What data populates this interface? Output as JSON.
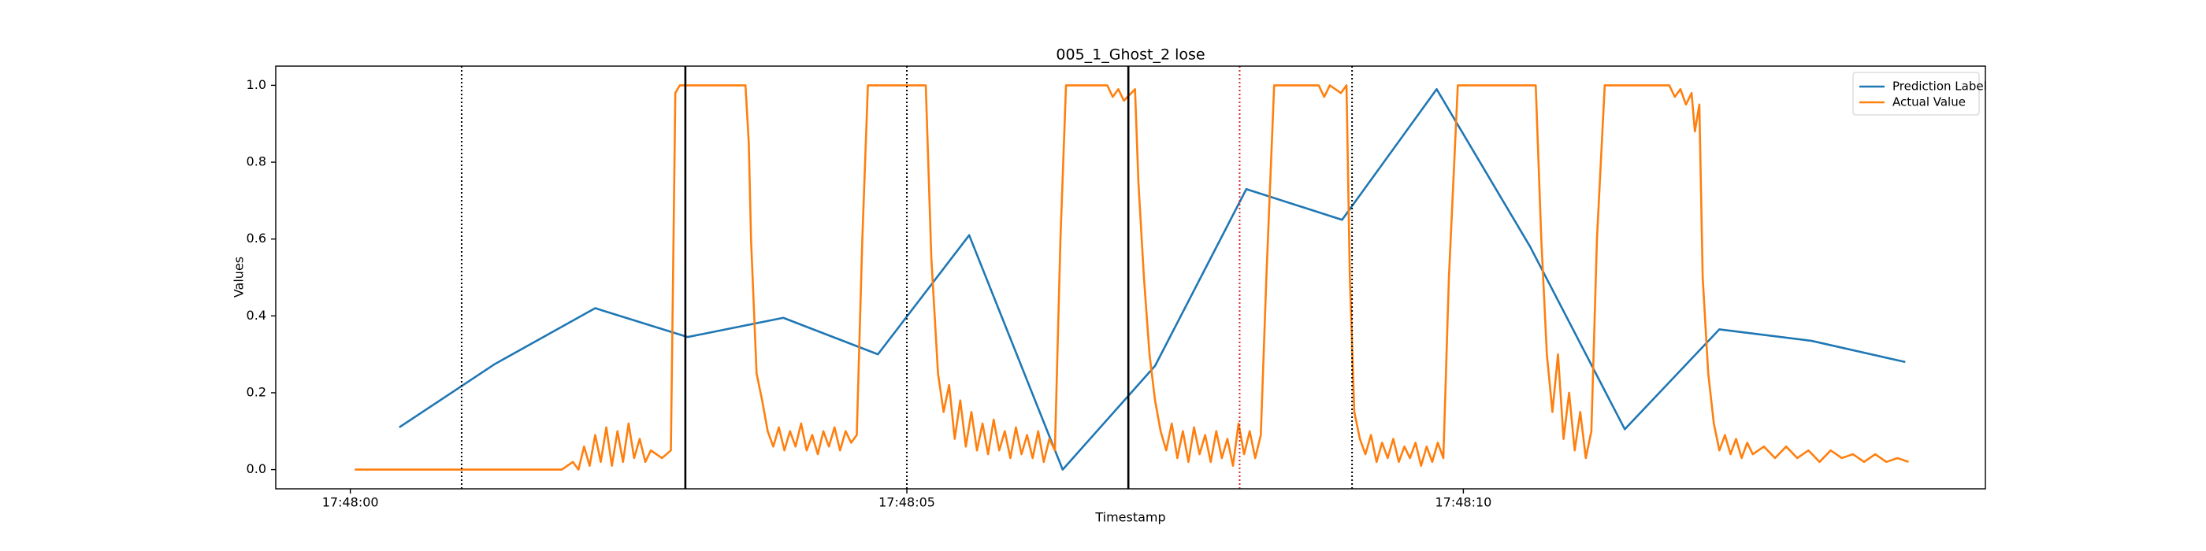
{
  "chart_data": {
    "type": "line",
    "title": "005_1_Ghost_2 lose",
    "x_label": "Timestamp",
    "y_label": "Values",
    "xlim": [
      -0.67,
      14.69
    ],
    "ylim": [
      -0.05,
      1.05
    ],
    "xticks": [
      {
        "value": 0,
        "label": "17:48:00"
      },
      {
        "value": 5,
        "label": "17:48:05"
      },
      {
        "value": 10,
        "label": "17:48:10"
      }
    ],
    "yticks": [
      {
        "value": 0,
        "label": "0.0"
      },
      0.2,
      0.4,
      0.6,
      0.8,
      {
        "value": 1,
        "label": "1.0"
      }
    ],
    "legend": "upper right",
    "vlines": [
      {
        "x": 1.0,
        "color": "#000000",
        "style": "dotted"
      },
      {
        "x": 3.01,
        "color": "#000000",
        "style": "solid"
      },
      {
        "x": 5.0,
        "color": "#000000",
        "style": "dotted"
      },
      {
        "x": 6.99,
        "color": "#000000",
        "style": "solid"
      },
      {
        "x": 7.99,
        "color": "#d62728",
        "style": "dotted"
      },
      {
        "x": 9.0,
        "color": "#000000",
        "style": "dotted"
      }
    ],
    "series": [
      {
        "name": "Prediction Label",
        "color": "#1f77b4",
        "x": [
          0.44,
          1.3,
          2.2,
          3.03,
          3.89,
          4.74,
          5.56,
          6.4,
          7.23,
          8.05,
          8.91,
          9.76,
          10.6,
          11.45,
          12.3,
          13.13,
          13.97
        ],
        "values": [
          0.11,
          0.275,
          0.42,
          0.345,
          0.395,
          0.3,
          0.61,
          0.0,
          0.27,
          0.73,
          0.65,
          0.99,
          0.58,
          0.105,
          0.365,
          0.335,
          0.28
        ]
      },
      {
        "name": "Actual Value",
        "color": "#ff7f0e",
        "x": [
          0.04,
          1.9,
          2.0,
          2.05,
          2.1,
          2.15,
          2.2,
          2.25,
          2.3,
          2.35,
          2.4,
          2.45,
          2.5,
          2.55,
          2.6,
          2.65,
          2.7,
          2.8,
          2.88,
          2.92,
          2.96,
          3.55,
          3.58,
          3.6,
          3.65,
          3.7,
          3.75,
          3.8,
          3.85,
          3.9,
          3.95,
          4.0,
          4.05,
          4.1,
          4.15,
          4.2,
          4.25,
          4.3,
          4.35,
          4.4,
          4.45,
          4.5,
          4.55,
          4.6,
          4.65,
          5.17,
          5.22,
          5.28,
          5.33,
          5.38,
          5.43,
          5.48,
          5.53,
          5.58,
          5.63,
          5.68,
          5.73,
          5.78,
          5.83,
          5.88,
          5.93,
          5.98,
          6.03,
          6.08,
          6.13,
          6.18,
          6.23,
          6.28,
          6.33,
          6.38,
          6.43,
          6.8,
          6.85,
          6.9,
          6.95,
          7.05,
          7.08,
          7.13,
          7.18,
          7.23,
          7.28,
          7.33,
          7.38,
          7.43,
          7.48,
          7.53,
          7.58,
          7.63,
          7.68,
          7.73,
          7.78,
          7.83,
          7.88,
          7.93,
          7.98,
          8.03,
          8.08,
          8.13,
          8.18,
          8.23,
          8.3,
          8.7,
          8.75,
          8.8,
          8.9,
          8.95,
          8.98,
          9.02,
          9.07,
          9.12,
          9.17,
          9.22,
          9.27,
          9.32,
          9.37,
          9.42,
          9.47,
          9.52,
          9.57,
          9.62,
          9.67,
          9.72,
          9.77,
          9.82,
          9.87,
          9.95,
          10.65,
          10.7,
          10.75,
          10.8,
          10.85,
          10.9,
          10.95,
          11.0,
          11.05,
          11.1,
          11.15,
          11.2,
          11.27,
          11.85,
          11.9,
          11.95,
          12.0,
          12.05,
          12.08,
          12.12,
          12.15,
          12.2,
          12.25,
          12.3,
          12.35,
          12.4,
          12.45,
          12.5,
          12.55,
          12.6,
          12.7,
          12.8,
          12.9,
          13.0,
          13.1,
          13.2,
          13.3,
          13.4,
          13.5,
          13.6,
          13.7,
          13.8,
          13.9,
          14.0
        ],
        "values": [
          0,
          0,
          0.02,
          0,
          0.06,
          0.01,
          0.09,
          0.02,
          0.11,
          0.01,
          0.1,
          0.02,
          0.12,
          0.03,
          0.08,
          0.02,
          0.05,
          0.03,
          0.05,
          0.98,
          1,
          1,
          0.85,
          0.6,
          0.25,
          0.18,
          0.1,
          0.06,
          0.11,
          0.05,
          0.1,
          0.06,
          0.12,
          0.05,
          0.09,
          0.04,
          0.1,
          0.06,
          0.11,
          0.05,
          0.1,
          0.07,
          0.09,
          0.6,
          1,
          1,
          0.55,
          0.25,
          0.15,
          0.22,
          0.08,
          0.18,
          0.06,
          0.15,
          0.05,
          0.12,
          0.04,
          0.13,
          0.05,
          0.1,
          0.03,
          0.11,
          0.04,
          0.09,
          0.03,
          0.1,
          0.02,
          0.08,
          0.05,
          0.6,
          1,
          1,
          0.97,
          0.99,
          0.96,
          0.99,
          0.75,
          0.5,
          0.3,
          0.18,
          0.1,
          0.05,
          0.12,
          0.03,
          0.1,
          0.02,
          0.11,
          0.04,
          0.09,
          0.02,
          0.1,
          0.03,
          0.08,
          0.01,
          0.12,
          0.04,
          0.1,
          0.03,
          0.09,
          0.5,
          1,
          1,
          0.97,
          1,
          0.98,
          1,
          0.5,
          0.15,
          0.08,
          0.04,
          0.09,
          0.02,
          0.07,
          0.03,
          0.08,
          0.02,
          0.06,
          0.03,
          0.07,
          0.01,
          0.06,
          0.02,
          0.07,
          0.03,
          0.5,
          1,
          1,
          0.6,
          0.3,
          0.15,
          0.3,
          0.08,
          0.2,
          0.05,
          0.15,
          0.03,
          0.1,
          0.6,
          1,
          1,
          0.97,
          0.99,
          0.95,
          0.98,
          0.88,
          0.95,
          0.5,
          0.25,
          0.12,
          0.05,
          0.09,
          0.04,
          0.08,
          0.03,
          0.07,
          0.04,
          0.06,
          0.03,
          0.06,
          0.03,
          0.05,
          0.02,
          0.05,
          0.03,
          0.04,
          0.02,
          0.04,
          0.02,
          0.03,
          0.02
        ]
      }
    ]
  }
}
